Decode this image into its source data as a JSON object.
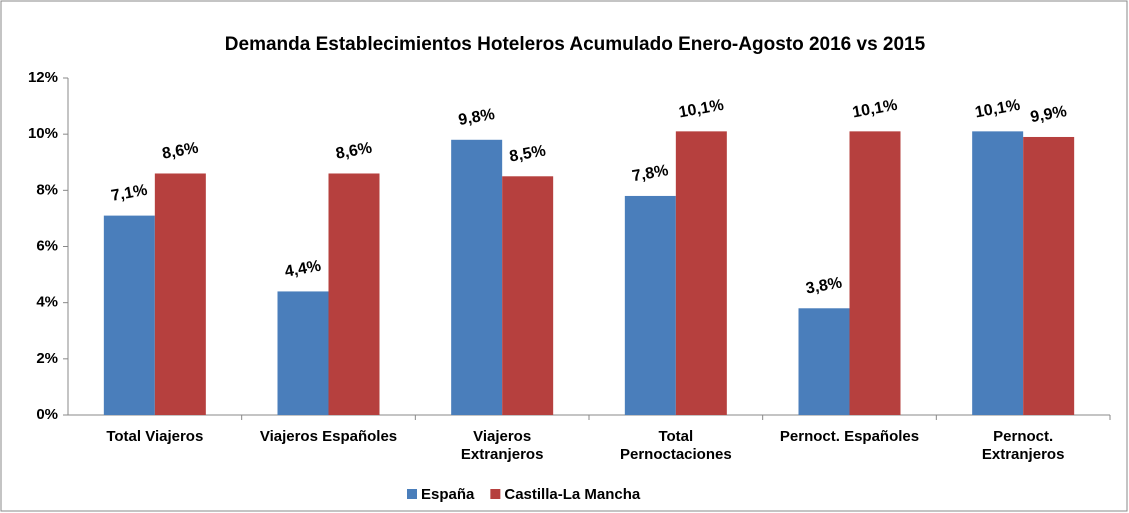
{
  "chart_data": {
    "type": "bar",
    "title": "Demanda Establecimientos Hoteleros Acumulado Enero-Agosto 2016 vs 2015",
    "categories": [
      "Total Viajeros",
      "Viajeros Españoles",
      "Viajeros\nExtranjeros",
      "Total\nPernoctaciones",
      "Pernoct. Españoles",
      "Pernoct.\nExtranjeros"
    ],
    "series": [
      {
        "name": "España",
        "color": "#4a7ebb",
        "values": [
          7.1,
          4.4,
          9.8,
          7.8,
          3.8,
          10.1
        ],
        "value_labels": [
          "7,1%",
          "4,4%",
          "9,8%",
          "7,8%",
          "3,8%",
          "10,1%"
        ]
      },
      {
        "name": "Castilla-La Mancha",
        "color": "#b6403e",
        "values": [
          8.6,
          8.6,
          8.5,
          10.1,
          10.1,
          9.9
        ],
        "value_labels": [
          "8,6%",
          "8,6%",
          "8,5%",
          "10,1%",
          "10,1%",
          "9,9%"
        ]
      }
    ],
    "ylim": [
      0,
      12
    ],
    "yticks": [
      {
        "value": 0,
        "label": "0%"
      },
      {
        "value": 2,
        "label": "2%"
      },
      {
        "value": 4,
        "label": "4%"
      },
      {
        "value": 6,
        "label": "6%"
      },
      {
        "value": 8,
        "label": "8%"
      },
      {
        "value": 10,
        "label": "10%"
      },
      {
        "value": 12,
        "label": "12%"
      }
    ],
    "legend": "bottom"
  }
}
